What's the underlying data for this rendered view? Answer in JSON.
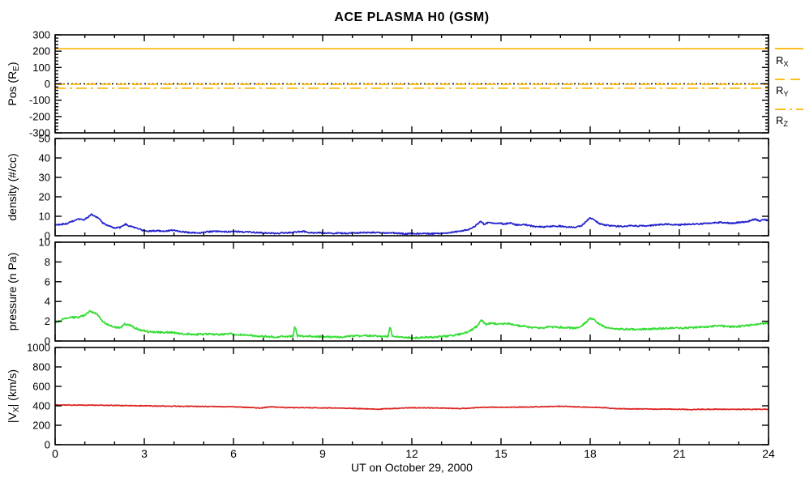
{
  "chart_data": {
    "type": "line",
    "title": "ACE PLASMA H0 (GSM)",
    "xlabel": "UT on October 29, 2000",
    "x_range": [
      0,
      24
    ],
    "x_major_ticks": [
      0,
      3,
      6,
      9,
      12,
      15,
      18,
      21,
      24
    ],
    "x_minor_step": 1,
    "grid": "off",
    "legend_position": "right-of-top-panel",
    "legend": {
      "items": [
        {
          "label": "R_{X}",
          "style": "solid",
          "color": "#FFB400"
        },
        {
          "label": "R_{Y}",
          "style": "dashed",
          "color": "#FFB400"
        },
        {
          "label": "R_{Z}",
          "style": "dashdot",
          "color": "#FFB400"
        }
      ]
    },
    "panels": [
      {
        "name": "position",
        "ylabel": "Pos (R_{E})",
        "y_range": [
          -300,
          300
        ],
        "y_major_step": 100,
        "y_minor_step": 20,
        "series": [
          {
            "name": "zero-line",
            "color": "#000000",
            "style": "dotted",
            "constant": 0
          },
          {
            "name": "R_X",
            "color": "#FFB400",
            "style": "solid",
            "constant": 215
          },
          {
            "name": "R_Y",
            "color": "#FFB400",
            "style": "dashed",
            "constant": -3
          },
          {
            "name": "R_Z",
            "color": "#FFB400",
            "style": "dashdot",
            "constant": -27
          }
        ]
      },
      {
        "name": "density",
        "ylabel": "density (#/cc)",
        "y_range": [
          0,
          50
        ],
        "y_major_step": 10,
        "y_minor_step": 0,
        "series": [
          {
            "name": "density",
            "color": "#2222CC",
            "style": "solid",
            "noise": 0.35,
            "x": [
              0,
              0.2,
              0.4,
              0.6,
              0.8,
              0.95,
              1.1,
              1.2,
              1.35,
              1.5,
              1.6,
              1.8,
              2.0,
              2.2,
              2.35,
              2.5,
              2.7,
              2.9,
              3.1,
              3.4,
              3.7,
              4.0,
              4.2,
              4.5,
              4.8,
              5.1,
              5.4,
              5.7,
              6.0,
              6.3,
              6.6,
              7.0,
              7.4,
              7.8,
              8.1,
              8.35,
              8.6,
              9.0,
              9.4,
              9.8,
              10.2,
              10.6,
              11.0,
              11.4,
              11.8,
              12.2,
              12.6,
              13.0,
              13.3,
              13.6,
              13.9,
              14.1,
              14.3,
              14.45,
              14.6,
              14.75,
              14.9,
              15.1,
              15.3,
              15.5,
              15.7,
              15.9,
              16.1,
              16.4,
              16.7,
              17.0,
              17.2,
              17.5,
              17.7,
              17.85,
              18.0,
              18.15,
              18.3,
              18.5,
              18.8,
              19.1,
              19.4,
              19.7,
              20.0,
              20.3,
              20.6,
              20.9,
              21.2,
              21.5,
              21.8,
              22.1,
              22.4,
              22.7,
              23.0,
              23.3,
              23.55,
              23.7,
              23.85,
              24.0
            ],
            "y": [
              5.5,
              5.8,
              6.2,
              7.5,
              8.5,
              8.0,
              9.5,
              11.0,
              10.0,
              8.5,
              6.5,
              5.0,
              4.0,
              4.2,
              6.0,
              5.0,
              4.0,
              3.0,
              2.2,
              2.6,
              2.4,
              2.8,
              2.2,
              1.6,
              1.4,
              2.0,
              2.2,
              2.0,
              2.3,
              2.0,
              1.8,
              1.4,
              1.2,
              1.5,
              1.9,
              2.2,
              1.4,
              1.5,
              1.3,
              1.2,
              1.5,
              1.7,
              1.5,
              1.3,
              1.0,
              1.1,
              1.0,
              1.3,
              1.6,
              2.3,
              3.2,
              4.5,
              7.3,
              5.8,
              7.0,
              6.2,
              6.6,
              6.0,
              6.6,
              5.6,
              5.8,
              5.4,
              4.8,
              4.5,
              4.8,
              5.0,
              4.6,
              4.3,
              5.2,
              7.0,
              9.2,
              8.0,
              6.3,
              5.5,
              5.0,
              4.8,
              5.2,
              5.0,
              5.2,
              5.6,
              5.9,
              5.5,
              5.8,
              6.0,
              6.2,
              6.6,
              6.9,
              6.4,
              6.8,
              7.3,
              8.6,
              7.6,
              8.2,
              8.0
            ]
          }
        ]
      },
      {
        "name": "pressure",
        "ylabel": "pressure (n Pa)",
        "y_range": [
          0,
          10
        ],
        "y_major_step": 2,
        "y_minor_step": 0,
        "series": [
          {
            "name": "pressure",
            "color": "#33DD33",
            "style": "solid",
            "noise": 0.09,
            "x": [
              0,
              0.2,
              0.4,
              0.6,
              0.8,
              1.0,
              1.15,
              1.3,
              1.45,
              1.6,
              1.8,
              2.0,
              2.2,
              2.35,
              2.5,
              2.7,
              2.9,
              3.1,
              3.5,
              3.9,
              4.3,
              4.7,
              5.1,
              5.5,
              5.9,
              6.3,
              6.7,
              7.1,
              7.5,
              7.9,
              8.0,
              8.07,
              8.15,
              8.5,
              8.9,
              9.3,
              9.7,
              10.1,
              10.5,
              10.9,
              11.2,
              11.27,
              11.35,
              11.7,
              12.1,
              12.5,
              12.9,
              13.2,
              13.5,
              13.8,
              14.0,
              14.2,
              14.35,
              14.5,
              14.65,
              14.8,
              15.0,
              15.2,
              15.4,
              15.6,
              15.8,
              16.0,
              16.3,
              16.6,
              16.9,
              17.2,
              17.5,
              17.7,
              17.85,
              18.0,
              18.15,
              18.3,
              18.5,
              18.8,
              19.1,
              19.5,
              19.9,
              20.3,
              20.7,
              21.1,
              21.5,
              21.9,
              22.3,
              22.7,
              23.1,
              23.5,
              23.8,
              24.0
            ],
            "y": [
              1.8,
              2.1,
              2.3,
              2.4,
              2.4,
              2.6,
              3.0,
              2.9,
              2.6,
              2.0,
              1.6,
              1.4,
              1.35,
              1.75,
              1.6,
              1.3,
              1.1,
              0.95,
              0.9,
              0.85,
              0.75,
              0.65,
              0.7,
              0.68,
              0.72,
              0.62,
              0.52,
              0.45,
              0.42,
              0.48,
              0.5,
              1.5,
              0.5,
              0.48,
              0.44,
              0.4,
              0.42,
              0.5,
              0.55,
              0.48,
              0.45,
              1.45,
              0.42,
              0.38,
              0.33,
              0.38,
              0.42,
              0.5,
              0.6,
              0.85,
              1.1,
              1.5,
              2.1,
              1.65,
              1.8,
              1.75,
              1.7,
              1.8,
              1.65,
              1.55,
              1.5,
              1.35,
              1.3,
              1.4,
              1.42,
              1.35,
              1.3,
              1.5,
              1.85,
              2.3,
              2.15,
              1.7,
              1.4,
              1.25,
              1.2,
              1.18,
              1.2,
              1.25,
              1.3,
              1.3,
              1.38,
              1.45,
              1.55,
              1.45,
              1.5,
              1.65,
              1.75,
              1.8
            ]
          }
        ]
      },
      {
        "name": "velocity",
        "ylabel": "|V_{X}| (km/s)",
        "y_range": [
          0,
          1000
        ],
        "y_major_step": 200,
        "y_minor_step": 0,
        "series": [
          {
            "name": "vx-magnitude",
            "color": "#DD2222",
            "style": "solid",
            "noise": 3.5,
            "x": [
              0,
              0.5,
              1.0,
              1.5,
              2.0,
              2.5,
              3.0,
              3.5,
              4.0,
              4.5,
              5.0,
              5.5,
              6.0,
              6.5,
              6.9,
              7.2,
              7.5,
              8.0,
              8.5,
              9.0,
              9.5,
              10.0,
              10.5,
              10.9,
              11.3,
              11.7,
              12.0,
              12.5,
              13.0,
              13.5,
              13.8,
              14.2,
              14.6,
              15.0,
              15.5,
              16.0,
              16.5,
              16.9,
              17.3,
              17.7,
              18.0,
              18.3,
              18.5,
              18.7,
              19.0,
              19.5,
              20.0,
              20.5,
              21.0,
              21.4,
              21.8,
              22.2,
              22.6,
              23.0,
              23.5,
              24.0
            ],
            "y": [
              410,
              408,
              407,
              405,
              404,
              402,
              400,
              398,
              396,
              395,
              393,
              391,
              390,
              383,
              376,
              390,
              385,
              381,
              380,
              379,
              376,
              374,
              368,
              365,
              372,
              377,
              380,
              379,
              377,
              372,
              373,
              382,
              385,
              385,
              386,
              388,
              392,
              396,
              392,
              388,
              386,
              384,
              380,
              373,
              370,
              368,
              367,
              366,
              364,
              361,
              364,
              365,
              363,
              364,
              363,
              365
            ]
          }
        ]
      }
    ]
  }
}
